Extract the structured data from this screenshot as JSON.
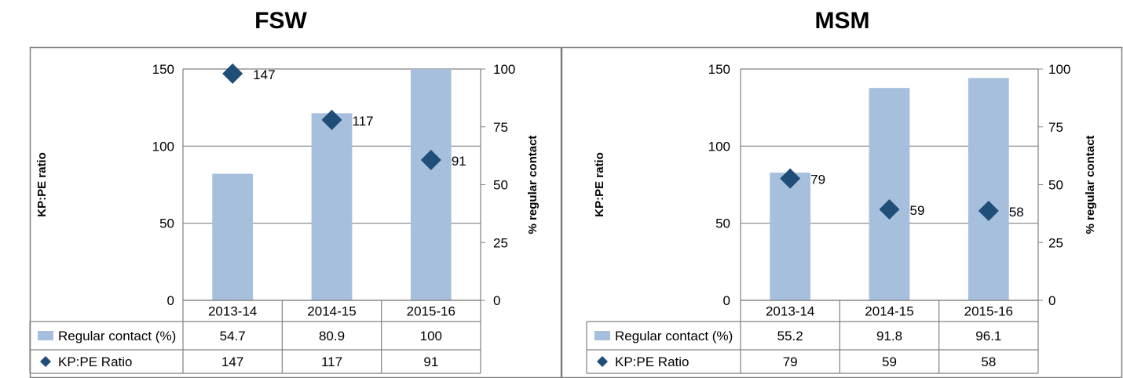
{
  "colors": {
    "bar": "#a6bfdd",
    "marker": "#1f4e79",
    "grid": "#808080",
    "text": "#000000"
  },
  "chart_data": [
    {
      "type": "bar",
      "title": "FSW",
      "categories": [
        "2013-14",
        "2014-15",
        "2015-16"
      ],
      "series": [
        {
          "name": "Regular contact (%)",
          "kind": "bar",
          "axis": "right",
          "values": [
            54.7,
            80.9,
            100
          ]
        },
        {
          "name": "KP:PE Ratio",
          "kind": "marker",
          "axis": "left",
          "values": [
            147,
            117,
            91
          ]
        }
      ],
      "ylabel": "KP:PE ratio",
      "y2label": "% regular contact",
      "ylim": [
        0,
        150
      ],
      "y2lim": [
        0,
        100
      ],
      "yticks": [
        "0",
        "50",
        "100",
        "150"
      ],
      "y2ticks": [
        "0",
        "25",
        "50",
        "75",
        "100"
      ],
      "table": [
        {
          "label": "Regular contact (%)",
          "values": [
            "54.7",
            "80.9",
            "100"
          ]
        },
        {
          "label": "KP:PE Ratio",
          "values": [
            "147",
            "117",
            "91"
          ]
        }
      ],
      "data_labels": [
        "147",
        "117",
        "91"
      ],
      "grid": true
    },
    {
      "type": "bar",
      "title": "MSM",
      "categories": [
        "2013-14",
        "2014-15",
        "2015-16"
      ],
      "series": [
        {
          "name": "Regular contact (%)",
          "kind": "bar",
          "axis": "right",
          "values": [
            55.2,
            91.8,
            96.1
          ]
        },
        {
          "name": "KP:PE Ratio",
          "kind": "marker",
          "axis": "left",
          "values": [
            79,
            59,
            58
          ]
        }
      ],
      "ylabel": "KP:PE ratio",
      "y2label": "% regular contact",
      "ylim": [
        0,
        150
      ],
      "y2lim": [
        0,
        100
      ],
      "yticks": [
        "0",
        "50",
        "100",
        "150"
      ],
      "y2ticks": [
        "0",
        "25",
        "50",
        "75",
        "100"
      ],
      "table": [
        {
          "label": "Regular contact (%)",
          "values": [
            "55.2",
            "91.8",
            "96.1"
          ]
        },
        {
          "label": "KP:PE Ratio",
          "values": [
            "79",
            "59",
            "58"
          ]
        }
      ],
      "data_labels": [
        "79",
        "59",
        "58"
      ],
      "grid": true
    }
  ]
}
